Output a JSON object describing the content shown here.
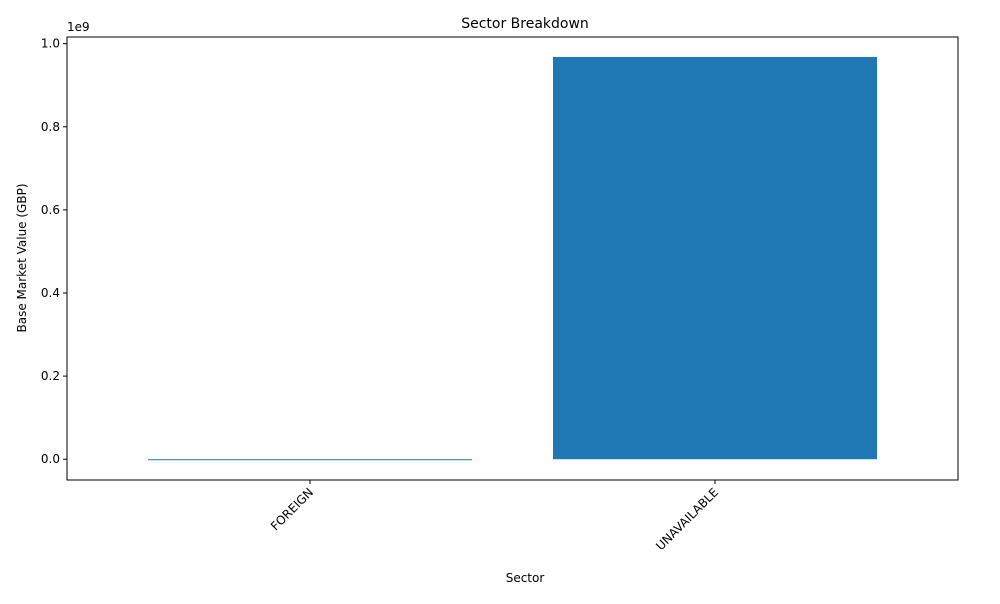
{
  "chart_data": {
    "type": "bar",
    "title": "Sector Breakdown",
    "xlabel": "Sector",
    "ylabel": "Base Market Value (GBP)",
    "offset_label": "1e9",
    "categories": [
      "FOREIGN",
      "UNAVAILABLE"
    ],
    "values": [
      0,
      968000000
    ],
    "ylim": [
      -50000000,
      1016000000
    ],
    "yticks": [
      0,
      200000000,
      400000000,
      600000000,
      800000000,
      1000000000
    ],
    "ytick_labels": [
      "0.0",
      "0.2",
      "0.4",
      "0.6",
      "0.8",
      "1.0"
    ],
    "bar_color": "#1f77b4",
    "grid": false,
    "xtick_rotation": "45"
  }
}
